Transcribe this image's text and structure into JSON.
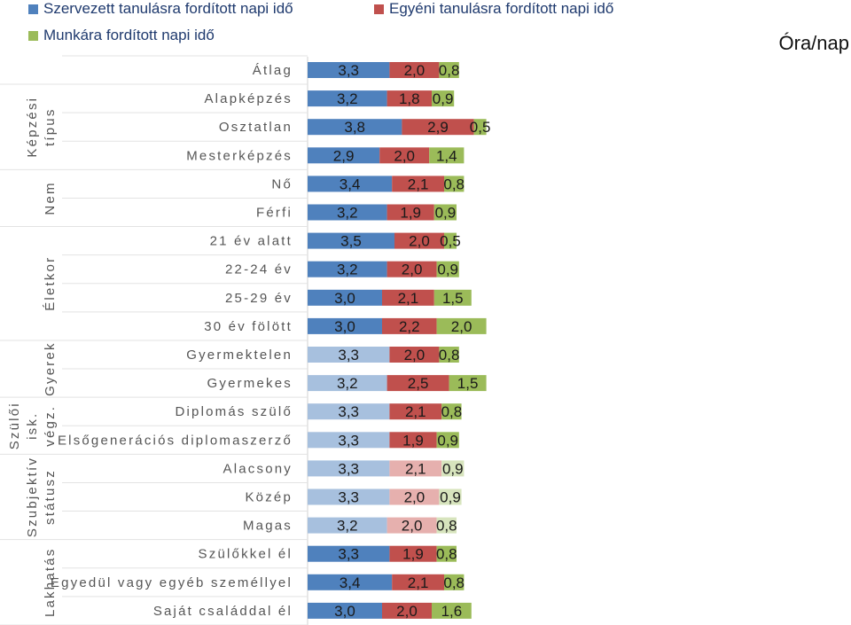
{
  "chart_data": {
    "type": "bar",
    "stacked": true,
    "orientation": "horizontal",
    "unit": "Óra/nap",
    "series": [
      {
        "name": "Szervezett tanulásra fordított napi idő",
        "color": "#4f81bd"
      },
      {
        "name": "Egyéni tanulásra fordított napi idő",
        "color": "#c0504d"
      },
      {
        "name": "Munkára fordított napi idő",
        "color": "#9bbb59"
      }
    ],
    "groups": [
      {
        "name": "",
        "lines": []
      },
      {
        "name": "Képzési típus",
        "lines": [
          "Képzési",
          "típus"
        ]
      },
      {
        "name": "Nem",
        "lines": [
          "Nem"
        ]
      },
      {
        "name": "Életkor",
        "lines": [
          "Életkor"
        ]
      },
      {
        "name": "Gyerek",
        "lines": [
          "Gyerek"
        ]
      },
      {
        "name": "Szülői isk. végz.",
        "lines": [
          "Szülői",
          "isk.",
          "végz."
        ]
      },
      {
        "name": "Szubjektív státusz",
        "lines": [
          "Szubjektív",
          "státusz"
        ]
      },
      {
        "name": "Lakhatás",
        "lines": [
          "Lakhatás"
        ]
      }
    ],
    "rows": [
      {
        "label": "Átlag",
        "group": 0,
        "values": [
          3.3,
          2.0,
          0.8
        ],
        "labels": [
          "3,3",
          "2,0",
          "0,8"
        ],
        "palette": 0
      },
      {
        "label": "Alapképzés",
        "group": 1,
        "values": [
          3.2,
          1.8,
          0.9
        ],
        "labels": [
          "3,2",
          "1,8",
          "0,9"
        ],
        "palette": 0
      },
      {
        "label": "Osztatlan",
        "group": 1,
        "values": [
          3.8,
          2.9,
          0.5
        ],
        "labels": [
          "3,8",
          "2,9",
          "0,5"
        ],
        "palette": 0
      },
      {
        "label": "Mesterképzés",
        "group": 1,
        "values": [
          2.9,
          2.0,
          1.4
        ],
        "labels": [
          "2,9",
          "2,0",
          "1,4"
        ],
        "palette": 0
      },
      {
        "label": "Nő",
        "group": 2,
        "values": [
          3.4,
          2.1,
          0.8
        ],
        "labels": [
          "3,4",
          "2,1",
          "0,8"
        ],
        "palette": 0
      },
      {
        "label": "Férfi",
        "group": 2,
        "values": [
          3.2,
          1.9,
          0.9
        ],
        "labels": [
          "3,2",
          "1,9",
          "0,9"
        ],
        "palette": 0
      },
      {
        "label": "21 év alatt",
        "group": 3,
        "values": [
          3.5,
          2.0,
          0.5
        ],
        "labels": [
          "3,5",
          "2,0",
          "0,5"
        ],
        "palette": 0
      },
      {
        "label": "22-24 év",
        "group": 3,
        "values": [
          3.2,
          2.0,
          0.9
        ],
        "labels": [
          "3,2",
          "2,0",
          "0,9"
        ],
        "palette": 0
      },
      {
        "label": "25-29 év",
        "group": 3,
        "values": [
          3.0,
          2.1,
          1.5
        ],
        "labels": [
          "3,0",
          "2,1",
          "1,5"
        ],
        "palette": 0
      },
      {
        "label": "30 év fölött",
        "group": 3,
        "values": [
          3.0,
          2.2,
          2.0
        ],
        "labels": [
          "3,0",
          "2,2",
          "2,0"
        ],
        "palette": 0
      },
      {
        "label": "Gyermektelen",
        "group": 4,
        "values": [
          3.3,
          2.0,
          0.8
        ],
        "labels": [
          "3,3",
          "2,0",
          "0,8"
        ],
        "palette": 1
      },
      {
        "label": "Gyermekes",
        "group": 4,
        "values": [
          3.2,
          2.5,
          1.5
        ],
        "labels": [
          "3,2",
          "2,5",
          "1,5"
        ],
        "palette": 1
      },
      {
        "label": "Diplomás szülő",
        "group": 5,
        "values": [
          3.3,
          2.1,
          0.8
        ],
        "labels": [
          "3,3",
          "2,1",
          "0,8"
        ],
        "palette": 1
      },
      {
        "label": "Elsőgenerációs diplomaszerző",
        "group": 5,
        "values": [
          3.3,
          1.9,
          0.9
        ],
        "labels": [
          "3,3",
          "1,9",
          "0,9"
        ],
        "palette": 1
      },
      {
        "label": "Alacsony",
        "group": 6,
        "values": [
          3.3,
          2.1,
          0.9
        ],
        "labels": [
          "3,3",
          "2,1",
          "0,9"
        ],
        "palette": 2
      },
      {
        "label": "Közép",
        "group": 6,
        "values": [
          3.3,
          2.0,
          0.9
        ],
        "labels": [
          "3,3",
          "2,0",
          "0,9"
        ],
        "palette": 2
      },
      {
        "label": "Magas",
        "group": 6,
        "values": [
          3.2,
          2.0,
          0.8
        ],
        "labels": [
          "3,2",
          "2,0",
          "0,8"
        ],
        "palette": 2
      },
      {
        "label": "Szülőkkel él",
        "group": 7,
        "values": [
          3.3,
          1.9,
          0.8
        ],
        "labels": [
          "3,3",
          "1,9",
          "0,8"
        ],
        "palette": 0
      },
      {
        "label": "Egyedül vagy egyéb személlyel",
        "group": 7,
        "values": [
          3.4,
          2.1,
          0.8
        ],
        "labels": [
          "3,4",
          "2,1",
          "0,8"
        ],
        "palette": 0
      },
      {
        "label": "Saját családdal él",
        "group": 7,
        "values": [
          3.0,
          2.0,
          1.6
        ],
        "labels": [
          "3,0",
          "2,0",
          "1,6"
        ],
        "palette": 0
      }
    ],
    "palettes": [
      [
        "#4f81bd",
        "#c0504d",
        "#9bbb59"
      ],
      [
        "#a7c0de",
        "#c0504d",
        "#9bbb59"
      ],
      [
        "#a7c0de",
        "#e6b0ae",
        "#d7e4bd"
      ]
    ],
    "xlim": [
      0,
      9
    ]
  }
}
